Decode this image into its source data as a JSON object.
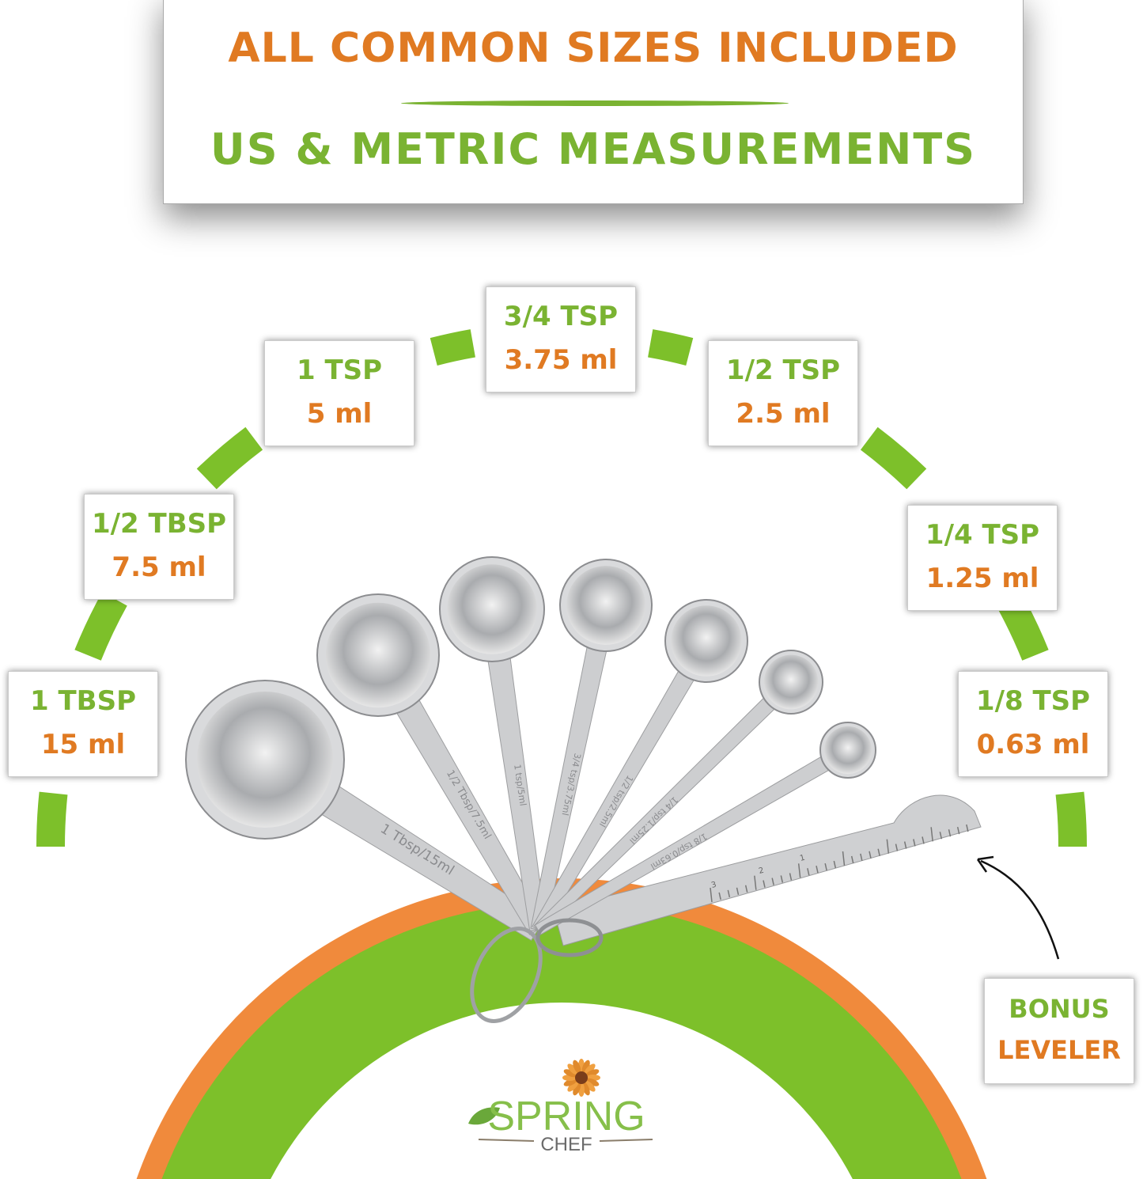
{
  "header": {
    "line1": "ALL COMMON SIZES INCLUDED",
    "line2": "US & METRIC MEASUREMENTS"
  },
  "colors": {
    "orange": "#e07a22",
    "green": "#7ab332",
    "arc_green": "#7dc02a",
    "arc_orange": "#f08a3c",
    "steel": "#c9cacc"
  },
  "labels": [
    {
      "us": "1 TBSP",
      "metric": "15 ml"
    },
    {
      "us": "1/2 TBSP",
      "metric": "7.5 ml"
    },
    {
      "us": "1 TSP",
      "metric": "5 ml"
    },
    {
      "us": "3/4 TSP",
      "metric": "3.75 ml"
    },
    {
      "us": "1/2 TSP",
      "metric": "2.5 ml"
    },
    {
      "us": "1/4 TSP",
      "metric": "1.25 ml"
    },
    {
      "us": "1/8 TSP",
      "metric": "0.63 ml"
    }
  ],
  "bonus": {
    "line1": "BONUS",
    "line2": "LEVELER"
  },
  "spoon_engravings": [
    "1 Tbsp/15ml",
    "1/2 Tbsp/7.5ml",
    "1 tsp/5ml",
    "3/4 tsp/3.75ml",
    "1/2 tsp/2.5ml",
    "1/4 tsp/1.25ml",
    "1/8 tsp/0.63ml"
  ],
  "leveler_ticks": [
    "1",
    "2",
    "3"
  ],
  "logo": {
    "word1": "SPRING",
    "word2": "CHEF"
  }
}
